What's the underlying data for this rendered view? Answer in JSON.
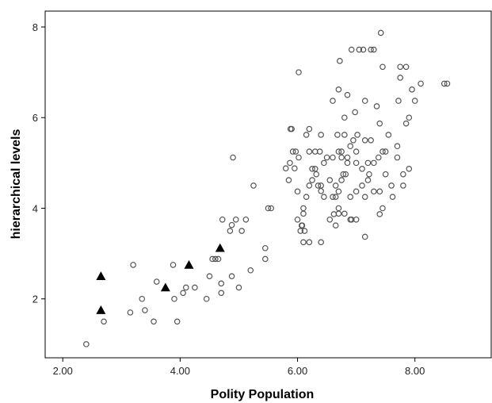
{
  "chart_data": {
    "type": "scatter",
    "xlabel": "Polity Population",
    "ylabel": "hierarchical levels",
    "xlim": [
      1.7,
      9.3
    ],
    "ylim": [
      0.7,
      8.35
    ],
    "x_ticks": [
      2,
      4,
      6,
      8
    ],
    "x_tick_labels": [
      "2.00",
      "4.00",
      "6.00",
      "8.00"
    ],
    "y_ticks": [
      2,
      4,
      6,
      8
    ],
    "y_tick_labels": [
      "2",
      "4",
      "6",
      "8"
    ],
    "grid": false,
    "legend": "none",
    "series": [
      {
        "marker": "circle-open",
        "color": "#555555",
        "points": [
          [
            2.4,
            1.0
          ],
          [
            2.7,
            1.5
          ],
          [
            3.15,
            1.7
          ],
          [
            3.2,
            2.75
          ],
          [
            3.35,
            2.0
          ],
          [
            3.4,
            1.75
          ],
          [
            3.55,
            1.5
          ],
          [
            3.6,
            2.38
          ],
          [
            3.88,
            2.75
          ],
          [
            3.9,
            2.0
          ],
          [
            3.95,
            1.5
          ],
          [
            4.05,
            2.13
          ],
          [
            4.1,
            2.25
          ],
          [
            4.25,
            2.25
          ],
          [
            4.45,
            2.0
          ],
          [
            4.5,
            2.5
          ],
          [
            4.55,
            2.88
          ],
          [
            4.6,
            2.88
          ],
          [
            4.65,
            2.88
          ],
          [
            4.7,
            2.13
          ],
          [
            4.7,
            2.34
          ],
          [
            4.72,
            3.75
          ],
          [
            4.85,
            3.5
          ],
          [
            4.88,
            2.5
          ],
          [
            4.88,
            3.63
          ],
          [
            4.9,
            5.12
          ],
          [
            4.95,
            3.75
          ],
          [
            5.0,
            2.25
          ],
          [
            5.05,
            3.5
          ],
          [
            5.12,
            3.75
          ],
          [
            5.2,
            2.63
          ],
          [
            5.25,
            4.5
          ],
          [
            5.45,
            2.88
          ],
          [
            5.45,
            3.12
          ],
          [
            5.5,
            4.0
          ],
          [
            5.55,
            4.0
          ],
          [
            5.8,
            4.88
          ],
          [
            5.85,
            4.62
          ],
          [
            5.87,
            5.0
          ],
          [
            5.88,
            5.75
          ],
          [
            5.9,
            5.75
          ],
          [
            5.92,
            5.25
          ],
          [
            5.95,
            4.88
          ],
          [
            5.97,
            5.25
          ],
          [
            6.0,
            3.75
          ],
          [
            6.0,
            4.37
          ],
          [
            6.02,
            5.12
          ],
          [
            6.02,
            7.0
          ],
          [
            6.05,
            3.5
          ],
          [
            6.07,
            3.62
          ],
          [
            6.08,
            3.62
          ],
          [
            6.1,
            3.88
          ],
          [
            6.1,
            4.0
          ],
          [
            6.1,
            3.25
          ],
          [
            6.12,
            3.5
          ],
          [
            6.15,
            4.25
          ],
          [
            6.15,
            5.62
          ],
          [
            6.2,
            3.25
          ],
          [
            6.2,
            4.5
          ],
          [
            6.2,
            5.25
          ],
          [
            6.2,
            5.75
          ],
          [
            6.25,
            4.87
          ],
          [
            6.25,
            4.62
          ],
          [
            6.3,
            4.87
          ],
          [
            6.3,
            5.25
          ],
          [
            6.32,
            4.75
          ],
          [
            6.35,
            4.5
          ],
          [
            6.38,
            5.25
          ],
          [
            6.4,
            3.25
          ],
          [
            6.4,
            4.38
          ],
          [
            6.4,
            4.5
          ],
          [
            6.4,
            5.62
          ],
          [
            6.45,
            4.25
          ],
          [
            6.45,
            5.0
          ],
          [
            6.5,
            5.12
          ],
          [
            6.55,
            3.75
          ],
          [
            6.55,
            4.62
          ],
          [
            6.6,
            4.25
          ],
          [
            6.6,
            5.12
          ],
          [
            6.6,
            6.37
          ],
          [
            6.62,
            3.87
          ],
          [
            6.65,
            3.62
          ],
          [
            6.65,
            4.25
          ],
          [
            6.65,
            4.5
          ],
          [
            6.68,
            5.62
          ],
          [
            6.7,
            3.88
          ],
          [
            6.7,
            4.0
          ],
          [
            6.7,
            4.37
          ],
          [
            6.7,
            5.25
          ],
          [
            6.7,
            6.62
          ],
          [
            6.72,
            7.25
          ],
          [
            6.75,
            4.62
          ],
          [
            6.75,
            5.12
          ],
          [
            6.75,
            5.25
          ],
          [
            6.78,
            4.75
          ],
          [
            6.8,
            3.88
          ],
          [
            6.8,
            5.62
          ],
          [
            6.8,
            6.0
          ],
          [
            6.82,
            4.75
          ],
          [
            6.85,
            5.0
          ],
          [
            6.85,
            5.12
          ],
          [
            6.85,
            6.5
          ],
          [
            6.9,
            3.75
          ],
          [
            6.9,
            4.25
          ],
          [
            6.9,
            5.37
          ],
          [
            6.92,
            3.75
          ],
          [
            6.92,
            7.5
          ],
          [
            6.95,
            5.5
          ],
          [
            6.98,
            6.12
          ],
          [
            7.0,
            3.75
          ],
          [
            7.0,
            4.37
          ],
          [
            7.0,
            5.0
          ],
          [
            7.0,
            5.25
          ],
          [
            7.02,
            5.62
          ],
          [
            7.05,
            7.5
          ],
          [
            7.1,
            4.5
          ],
          [
            7.1,
            4.87
          ],
          [
            7.12,
            7.5
          ],
          [
            7.15,
            3.37
          ],
          [
            7.15,
            4.25
          ],
          [
            7.15,
            5.5
          ],
          [
            7.15,
            6.37
          ],
          [
            7.2,
            4.62
          ],
          [
            7.2,
            5.0
          ],
          [
            7.22,
            4.75
          ],
          [
            7.25,
            5.5
          ],
          [
            7.25,
            7.5
          ],
          [
            7.3,
            4.37
          ],
          [
            7.3,
            5.0
          ],
          [
            7.3,
            7.5
          ],
          [
            7.35,
            6.25
          ],
          [
            7.38,
            5.12
          ],
          [
            7.4,
            3.87
          ],
          [
            7.4,
            4.37
          ],
          [
            7.4,
            5.87
          ],
          [
            7.42,
            7.87
          ],
          [
            7.45,
            5.25
          ],
          [
            7.45,
            4.0
          ],
          [
            7.45,
            7.12
          ],
          [
            7.5,
            4.75
          ],
          [
            7.5,
            5.25
          ],
          [
            7.55,
            5.62
          ],
          [
            7.6,
            4.5
          ],
          [
            7.62,
            4.25
          ],
          [
            7.7,
            5.12
          ],
          [
            7.7,
            5.37
          ],
          [
            7.72,
            6.37
          ],
          [
            7.75,
            6.88
          ],
          [
            7.75,
            7.12
          ],
          [
            7.8,
            4.5
          ],
          [
            7.8,
            4.75
          ],
          [
            7.85,
            7.12
          ],
          [
            7.85,
            5.87
          ],
          [
            7.9,
            4.87
          ],
          [
            7.9,
            6.0
          ],
          [
            7.95,
            6.62
          ],
          [
            8.0,
            6.37
          ],
          [
            8.1,
            6.75
          ],
          [
            8.5,
            6.75
          ],
          [
            8.55,
            6.75
          ]
        ]
      },
      {
        "marker": "triangle-filled",
        "color": "#000000",
        "points": [
          [
            2.65,
            2.5
          ],
          [
            2.65,
            1.75
          ],
          [
            3.75,
            2.25
          ],
          [
            4.15,
            2.75
          ],
          [
            4.68,
            3.12
          ]
        ]
      }
    ]
  }
}
